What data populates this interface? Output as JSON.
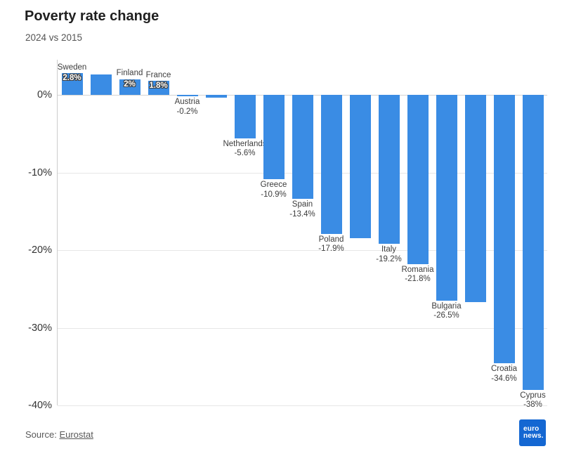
{
  "header": {
    "title": "Poverty rate change",
    "subtitle": "2024 vs 2015"
  },
  "footer": {
    "source_prefix": "Source:",
    "source_link": "Eurostat"
  },
  "logo": {
    "line1": "euro",
    "line2": "news.",
    "background_color": "#1467d2"
  },
  "colors": {
    "bar": "#3a8ce4",
    "grid": "#e6e6e6",
    "axis": "#cccccc",
    "label_text": "#3d3d3d"
  },
  "chart_data": {
    "type": "bar",
    "title": "Poverty rate change",
    "subtitle": "2024 vs 2015",
    "categories": [
      "Sweden",
      "",
      "Finland",
      "France",
      "Austria",
      "",
      "Netherlands",
      "Greece",
      "Spain",
      "Poland",
      "",
      "Italy",
      "Romania",
      "Bulgaria",
      "",
      "Croatia",
      "Cyprus"
    ],
    "values": [
      2.8,
      2.6,
      2,
      1.8,
      -0.2,
      -0.4,
      -5.6,
      -10.9,
      -13.4,
      -17.9,
      -18.5,
      -19.2,
      -21.8,
      -26.5,
      -26.7,
      -34.6,
      -38
    ],
    "value_labels": [
      "2.8%",
      "",
      "2%",
      "1.8%",
      "-0.2%",
      "",
      "-5.6%",
      "-10.9%",
      "-13.4%",
      "-17.9%",
      "",
      "-19.2%",
      "-21.8%",
      "-26.5%",
      "",
      "-34.6%",
      "-38%"
    ],
    "yticks": [
      0,
      -10,
      -20,
      -30,
      -40
    ],
    "ytick_labels": [
      "0%",
      "-10%",
      "-20%",
      "-30%",
      "-40%"
    ],
    "ylim": [
      4.5,
      -40
    ],
    "xlabel": "",
    "ylabel": "",
    "grid": true,
    "legend": "none",
    "bar_color": "#3a8ce4"
  }
}
